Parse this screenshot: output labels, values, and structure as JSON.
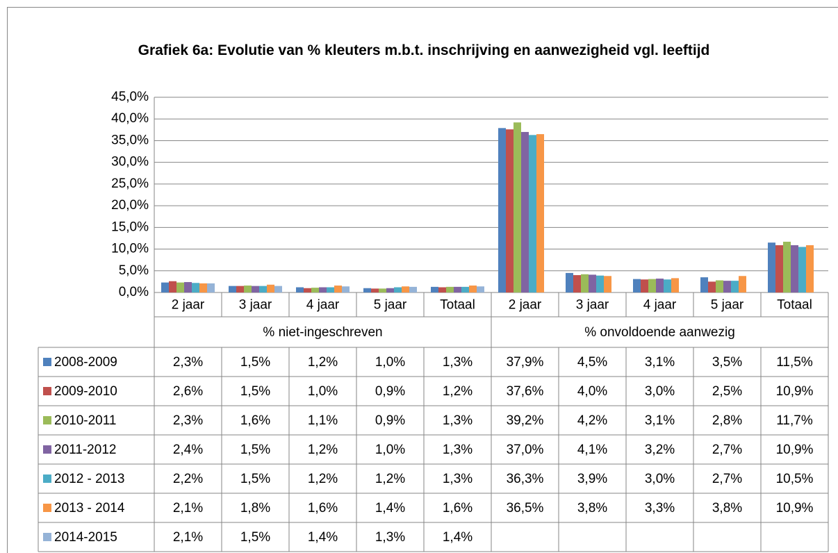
{
  "chart_data": {
    "type": "bar",
    "title": "Grafiek 6a: Evolutie van % kleuters m.b.t. inschrijving en aanwezigheid vgl. leeftijd",
    "categories": [
      "2 jaar",
      "3 jaar",
      "4 jaar",
      "5 jaar",
      "Totaal",
      "2 jaar",
      "3 jaar",
      "4 jaar",
      "5 jaar",
      "Totaal"
    ],
    "groups": [
      "% niet-ingeschreven",
      "% onvoldoende aanwezig"
    ],
    "series": [
      {
        "name": "2008-2009",
        "color": "#4f81bd",
        "values": [
          2.3,
          1.5,
          1.2,
          1.0,
          1.3,
          37.9,
          4.5,
          3.1,
          3.5,
          11.5
        ],
        "value_labels": [
          "2,3%",
          "1,5%",
          "1,2%",
          "1,0%",
          "1,3%",
          "37,9%",
          "4,5%",
          "3,1%",
          "3,5%",
          "11,5%"
        ]
      },
      {
        "name": "2009-2010",
        "color": "#c0504d",
        "values": [
          2.6,
          1.5,
          1.0,
          0.9,
          1.2,
          37.6,
          4.0,
          3.0,
          2.5,
          10.9
        ],
        "value_labels": [
          "2,6%",
          "1,5%",
          "1,0%",
          "0,9%",
          "1,2%",
          "37,6%",
          "4,0%",
          "3,0%",
          "2,5%",
          "10,9%"
        ]
      },
      {
        "name": "2010-2011",
        "color": "#9bbb59",
        "values": [
          2.3,
          1.6,
          1.1,
          0.9,
          1.3,
          39.2,
          4.2,
          3.1,
          2.8,
          11.7
        ],
        "value_labels": [
          "2,3%",
          "1,6%",
          "1,1%",
          "0,9%",
          "1,3%",
          "39,2%",
          "4,2%",
          "3,1%",
          "2,8%",
          "11,7%"
        ]
      },
      {
        "name": "2011-2012",
        "color": "#8064a2",
        "values": [
          2.4,
          1.5,
          1.2,
          1.0,
          1.3,
          37.0,
          4.1,
          3.2,
          2.7,
          10.9
        ],
        "value_labels": [
          "2,4%",
          "1,5%",
          "1,2%",
          "1,0%",
          "1,3%",
          "37,0%",
          "4,1%",
          "3,2%",
          "2,7%",
          "10,9%"
        ]
      },
      {
        "name": "2012 - 2013",
        "color": "#4bacc6",
        "values": [
          2.2,
          1.5,
          1.2,
          1.2,
          1.3,
          36.3,
          3.9,
          3.0,
          2.7,
          10.5
        ],
        "value_labels": [
          "2,2%",
          "1,5%",
          "1,2%",
          "1,2%",
          "1,3%",
          "36,3%",
          "3,9%",
          "3,0%",
          "2,7%",
          "10,5%"
        ]
      },
      {
        "name": "2013 - 2014",
        "color": "#f79646",
        "values": [
          2.1,
          1.8,
          1.6,
          1.4,
          1.6,
          36.5,
          3.8,
          3.3,
          3.8,
          10.9
        ],
        "value_labels": [
          "2,1%",
          "1,8%",
          "1,6%",
          "1,4%",
          "1,6%",
          "36,5%",
          "3,8%",
          "3,3%",
          "3,8%",
          "10,9%"
        ]
      },
      {
        "name": "2014-2015",
        "color": "#95b3d7",
        "values": [
          2.1,
          1.5,
          1.4,
          1.3,
          1.4,
          null,
          null,
          null,
          null,
          null
        ],
        "value_labels": [
          "2,1%",
          "1,5%",
          "1,4%",
          "1,3%",
          "1,4%",
          null,
          null,
          null,
          null,
          null
        ]
      }
    ],
    "ylim": [
      0,
      45
    ],
    "yticks": [
      {
        "value": 0,
        "label": "0,0%"
      },
      {
        "value": 5,
        "label": "5,0%"
      },
      {
        "value": 10,
        "label": "10,0%"
      },
      {
        "value": 15,
        "label": "15,0%"
      },
      {
        "value": 20,
        "label": "20,0%"
      },
      {
        "value": 25,
        "label": "25,0%"
      },
      {
        "value": 30,
        "label": "30,0%"
      },
      {
        "value": 35,
        "label": "35,0%"
      },
      {
        "value": 40,
        "label": "40,0%"
      },
      {
        "value": 45,
        "label": "45,0%"
      }
    ],
    "grid": true
  }
}
